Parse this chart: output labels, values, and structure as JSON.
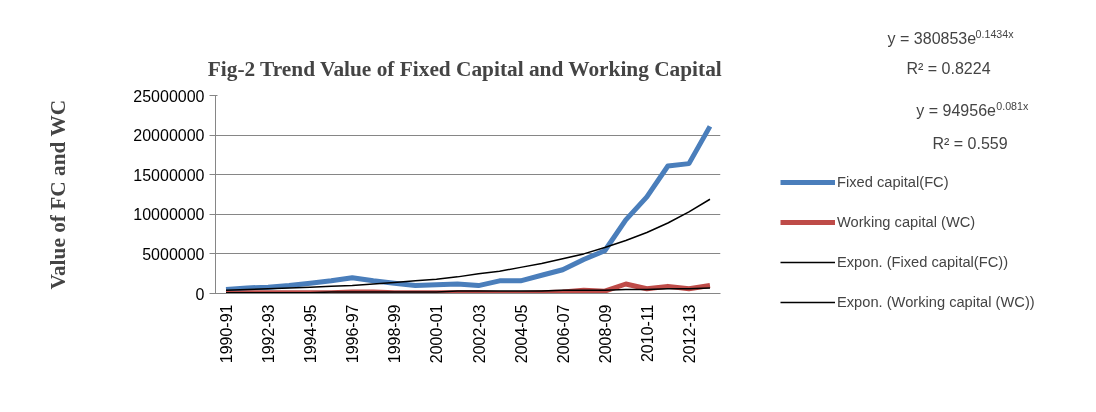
{
  "chart_data": {
    "type": "line",
    "title": "Fig-2 Trend Value of Fixed Capital and Working  Capital",
    "ylabel": "Value of FC and WC",
    "categories": [
      "1990-91",
      null,
      "1992-93",
      null,
      "1994-95",
      null,
      "1996-97",
      null,
      "1998-99",
      null,
      "2000-01",
      null,
      "2002-03",
      null,
      "2004-05",
      null,
      "2006-07",
      null,
      "2008-09",
      null,
      "2010-11",
      null,
      "2012-13",
      null
    ],
    "series": [
      {
        "name": "Fixed capital(FC)",
        "color": "#4a7ebb",
        "values": [
          500000,
          700000,
          800000,
          1000000,
          1300000,
          1600000,
          2000000,
          1600000,
          1300000,
          1000000,
          1100000,
          1200000,
          1000000,
          1600000,
          1600000,
          2300000,
          3000000,
          4300000,
          5400000,
          9300000,
          12200000,
          16100000,
          16400000,
          21100000
        ]
      },
      {
        "name": "Working capital (WC)",
        "color": "#be4b48",
        "values": [
          0,
          100000,
          100000,
          100000,
          100000,
          100000,
          200000,
          200000,
          100000,
          100000,
          100000,
          100000,
          100000,
          0,
          0,
          100000,
          200000,
          400000,
          300000,
          1200000,
          600000,
          900000,
          600000,
          1000000
        ]
      },
      {
        "name": "Expon. (Fixed capital(FC))",
        "color": "#000000",
        "values": [
          400000,
          500000,
          600000,
          700000,
          800000,
          900000,
          1000000,
          1200000,
          1400000,
          1600000,
          1800000,
          2100000,
          2500000,
          2800000,
          3300000,
          3800000,
          4400000,
          5000000,
          5800000,
          6700000,
          7700000,
          8900000,
          10300000,
          11900000
        ]
      },
      {
        "name": "Expon. (Working capital (WC))",
        "color": "#000000",
        "values": [
          100000,
          100000,
          100000,
          100000,
          100000,
          200000,
          200000,
          200000,
          200000,
          200000,
          200000,
          300000,
          300000,
          300000,
          300000,
          300000,
          400000,
          400000,
          400000,
          500000,
          500000,
          600000,
          600000,
          700000
        ]
      }
    ],
    "ylim": [
      0,
      25000000
    ],
    "yticks": [
      0,
      5000000,
      10000000,
      15000000,
      20000000,
      25000000
    ],
    "grid": "y",
    "legend": "right",
    "marker": "none",
    "line_style": "solid",
    "annotations": [
      "y = 380853e$^{0.1434x}$",
      "R² = 0.8224",
      "y = 94956e$^{0.081x}$",
      "R² = 0.559"
    ]
  }
}
